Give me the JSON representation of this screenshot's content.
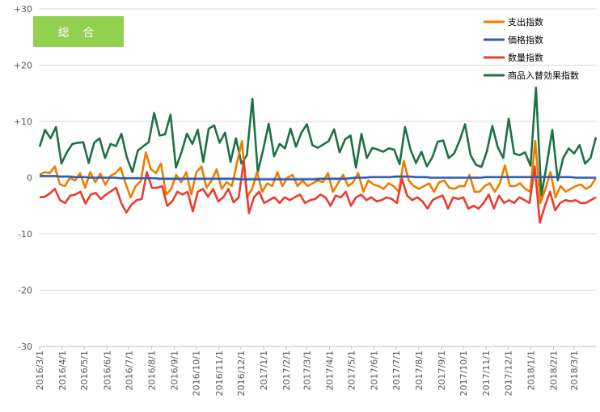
{
  "chart_data": {
    "type": "line",
    "badge": "総 合",
    "ylim": [
      -30,
      30
    ],
    "yticks": [
      "-30",
      "-20",
      "-10",
      "0",
      "+10",
      "+20",
      "+30"
    ],
    "ytick_values": [
      -30,
      -20,
      -10,
      0,
      10,
      20,
      30
    ],
    "xticks": [
      "2016/3/1",
      "2016/4/1",
      "2016/5/1",
      "2016/6/1",
      "2016/7/1",
      "2016/8/1",
      "2016/9/1",
      "2016/10/1",
      "2016/11/1",
      "2016/12/1",
      "2017/1/1",
      "2017/2/1",
      "2017/3/1",
      "2017/4/1",
      "2017/5/1",
      "2017/6/1",
      "2017/7/1",
      "2017/8/1",
      "2017/9/1",
      "2017/10/1",
      "2017/11/1",
      "2017/12/1",
      "2018/1/1",
      "2018/2/1",
      "2018/3/1"
    ],
    "x_start": "2016/3/1",
    "x_end": "2018/3/31",
    "legend_position": "top-right",
    "grid": "horizontal",
    "series": [
      {
        "name": "支出指数",
        "color": "#ED7D00",
        "values": [
          0.5,
          1.0,
          0.8,
          2.0,
          -1.2,
          -1.5,
          0.0,
          -0.5,
          0.8,
          -1.8,
          1.0,
          -0.8,
          0.7,
          -1.3,
          0.3,
          0.8,
          1.8,
          -1.0,
          -3.5,
          -1.5,
          -0.6,
          4.5,
          1.5,
          0.8,
          2.5,
          -3.0,
          -2.0,
          0.5,
          -0.8,
          1.0,
          -3.0,
          1.0,
          2.0,
          -1.8,
          -0.5,
          1.5,
          -2.0,
          -0.8,
          -1.5,
          2.5,
          6.5,
          -3.5,
          -2.0,
          1.0,
          -2.5,
          -1.0,
          -1.5,
          1.0,
          -1.5,
          0.0,
          0.5,
          -1.5,
          -0.5,
          -1.5,
          -1.0,
          -0.5,
          -0.8,
          0.8,
          -2.5,
          -1.0,
          0.5,
          -1.5,
          -0.8,
          0.8,
          -2.5,
          -0.5,
          -1.2,
          -1.5,
          -2.0,
          -1.0,
          -1.5,
          -2.5,
          3.0,
          -0.5,
          -1.5,
          -2.0,
          -1.5,
          -1.0,
          -2.5,
          -0.8,
          -0.5,
          -1.8,
          -2.0,
          -1.5,
          -1.5,
          0.5,
          -2.5,
          -2.5,
          -1.5,
          -1.0,
          -2.5,
          -1.0,
          2.2,
          -1.5,
          -1.5,
          -1.0,
          -2.0,
          -2.5,
          6.5,
          -4.5,
          -2.0,
          1.0,
          -3.5,
          -1.5,
          -2.5,
          -2.0,
          -1.5,
          -1.2,
          -2.0,
          -1.5,
          0.0
        ]
      },
      {
        "name": "価格指数",
        "color": "#2E5CB8",
        "values": [
          0.3,
          0.3,
          0.3,
          0.3,
          0.2,
          0.2,
          0.2,
          0.1,
          0.1,
          0.1,
          0.0,
          0.0,
          0.0,
          0.0,
          0.0,
          0.0,
          -0.1,
          -0.1,
          -0.1,
          -0.1,
          -0.1,
          -0.1,
          -0.1,
          -0.1,
          -0.2,
          -0.2,
          -0.2,
          -0.2,
          -0.2,
          -0.2,
          -0.2,
          -0.2,
          -0.2,
          -0.2,
          -0.2,
          -0.2,
          -0.2,
          -0.2,
          -0.2,
          -0.2,
          -0.3,
          -0.3,
          -0.3,
          -0.3,
          -0.3,
          -0.3,
          -0.3,
          -0.3,
          -0.3,
          -0.3,
          -0.3,
          -0.3,
          -0.3,
          -0.3,
          -0.3,
          -0.3,
          -0.2,
          -0.2,
          -0.2,
          -0.2,
          -0.2,
          -0.2,
          -0.1,
          0.0,
          0.0,
          0.0,
          0.1,
          0.1,
          0.1,
          0.1,
          0.1,
          0.2,
          0.2,
          0.2,
          0.2,
          0.1,
          0.1,
          0.1,
          0.0,
          0.0,
          0.0,
          0.0,
          0.0,
          0.0,
          0.0,
          0.0,
          0.0,
          0.0,
          0.0,
          0.1,
          0.1,
          0.1,
          0.1,
          0.1,
          0.1,
          0.1,
          0.1,
          0.1,
          0.1,
          0.1,
          0.1,
          0.1,
          0.1,
          0.1,
          0.1,
          0.1,
          0.1,
          0.0,
          0.0,
          0.0,
          0.0,
          0.0
        ]
      },
      {
        "name": "数量指数",
        "color": "#E83E2E",
        "values": [
          -3.5,
          -3.4,
          -2.8,
          -2.0,
          -4.0,
          -4.5,
          -3.2,
          -3.0,
          -2.5,
          -4.6,
          -3.0,
          -2.7,
          -3.8,
          -3.0,
          -2.4,
          -1.8,
          -4.5,
          -6.2,
          -4.8,
          -4.0,
          -3.8,
          1.0,
          -1.8,
          -1.8,
          -1.5,
          -5.0,
          -4.2,
          -2.5,
          -3.0,
          -2.5,
          -6.0,
          -2.5,
          -2.0,
          -3.4,
          -2.0,
          -4.2,
          -3.5,
          -2.0,
          -4.4,
          -3.5,
          3.0,
          -6.3,
          -3.5,
          -2.5,
          -4.5,
          -4.0,
          -3.5,
          -4.5,
          -3.5,
          -4.0,
          -3.5,
          -3.0,
          -4.5,
          -4.0,
          -3.8,
          -3.0,
          -3.5,
          -5.0,
          -3.2,
          -3.5,
          -2.5,
          -5.0,
          -3.5,
          -3.0,
          -4.0,
          -3.5,
          -4.2,
          -4.0,
          -3.5,
          -3.8,
          -4.5,
          -0.2,
          -3.2,
          -4.0,
          -3.5,
          -4.2,
          -5.5,
          -4.0,
          -3.5,
          -3.2,
          -5.5,
          -3.5,
          -3.8,
          -3.5,
          -5.5,
          -5.0,
          -5.5,
          -4.5,
          -3.0,
          -5.5,
          -3.2,
          -4.5,
          -4.0,
          -4.5,
          -3.5,
          -4.0,
          -4.5,
          2.0,
          -8.0,
          -5.0,
          -2.5,
          -5.8,
          -4.5,
          -4.0,
          -4.2,
          -4.0,
          -4.5,
          -4.5,
          -4.0,
          -3.5
        ]
      },
      {
        "name": "商品入替効果指数",
        "color": "#1E7145",
        "values": [
          5.5,
          8.5,
          7.0,
          9.0,
          2.5,
          4.5,
          6.0,
          6.2,
          6.3,
          2.6,
          6.2,
          7.0,
          3.5,
          6.0,
          5.6,
          7.8,
          3.6,
          1.0,
          4.8,
          5.6,
          6.3,
          11.5,
          7.5,
          7.7,
          11.2,
          1.8,
          4.5,
          7.8,
          6.0,
          8.5,
          2.8,
          8.7,
          9.3,
          6.2,
          8.0,
          2.8,
          7.0,
          2.5,
          4.0,
          14.0,
          1.0,
          5.0,
          9.6,
          3.8,
          6.0,
          5.2,
          8.7,
          5.5,
          8.0,
          9.5,
          5.8,
          5.3,
          5.9,
          6.5,
          8.6,
          4.5,
          6.8,
          7.5,
          1.8,
          7.8,
          3.5,
          5.3,
          5.0,
          4.6,
          5.2,
          5.0,
          2.4,
          9.0,
          5.0,
          2.6,
          4.6,
          2.0,
          3.6,
          6.4,
          6.6,
          3.5,
          4.3,
          6.6,
          9.5,
          4.0,
          2.3,
          1.9,
          4.7,
          9.2,
          5.4,
          3.5,
          10.5,
          4.3,
          4.0,
          4.5,
          2.1,
          16.0,
          -3.2,
          2.5,
          8.5,
          -0.5,
          3.5,
          5.2,
          4.3,
          5.8,
          2.5,
          3.5,
          7.2
        ]
      }
    ]
  }
}
